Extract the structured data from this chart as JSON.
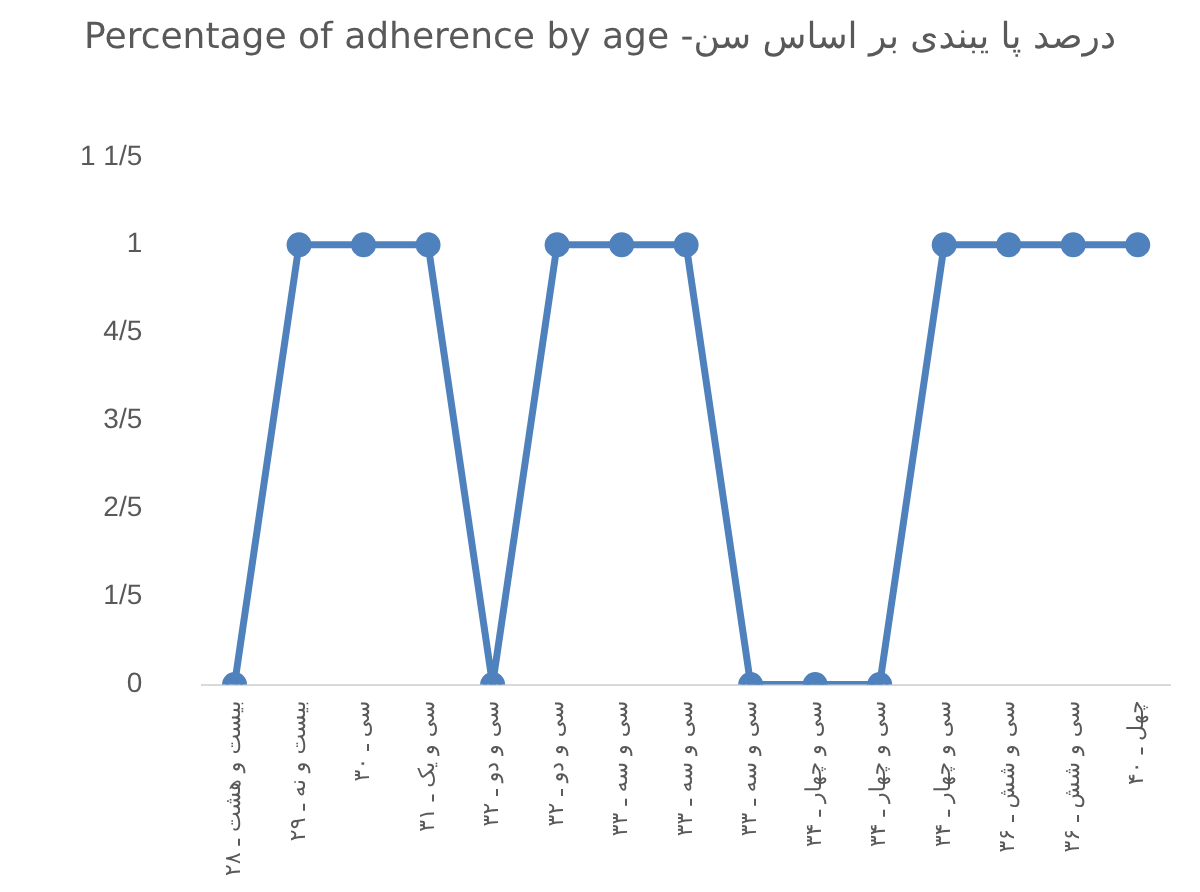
{
  "chart_data": {
    "type": "line",
    "title": "درصد پا یبندی بر اساس سن- Percentage of adherence by age",
    "categories": [
      "بیست و هشت ـ ۲۸",
      "بیست و نه ـ ۲۹",
      "سی ـ ۳۰",
      "سی و یک ـ ۳۱",
      "سی و دو ـ ۳۲",
      "سی و دو ـ ۳۲",
      "سی و سه ـ ۳۳",
      "سی و سه ـ ۳۳",
      "سی و سه ـ ۳۳",
      "سی و چهار ـ ۳۴",
      "سی و چهار ـ ۳۴",
      "سی و چهار ـ ۳۴",
      "سی و شش ـ ۳۶",
      "سی و شش ـ ۳۶",
      "چهل ـ ۴۰"
    ],
    "series": [
      {
        "color": "#4f81bd",
        "values": [
          0,
          1,
          1,
          1,
          0,
          1,
          1,
          1,
          0,
          0,
          0,
          1,
          1,
          1,
          1
        ]
      }
    ],
    "ylim": [
      0,
      1.2
    ],
    "yticks": [
      0,
      {
        "value": 0.2,
        "label": "1/5"
      },
      {
        "value": 0.4,
        "label": "2/5"
      },
      {
        "value": 0.6,
        "label": "3/5"
      },
      {
        "value": 0.8,
        "label": "4/5"
      },
      1,
      {
        "value": 1.2,
        "label": "1 1/5"
      }
    ],
    "grid": false,
    "legend": false,
    "marker": "circle",
    "line_style": "solid"
  }
}
